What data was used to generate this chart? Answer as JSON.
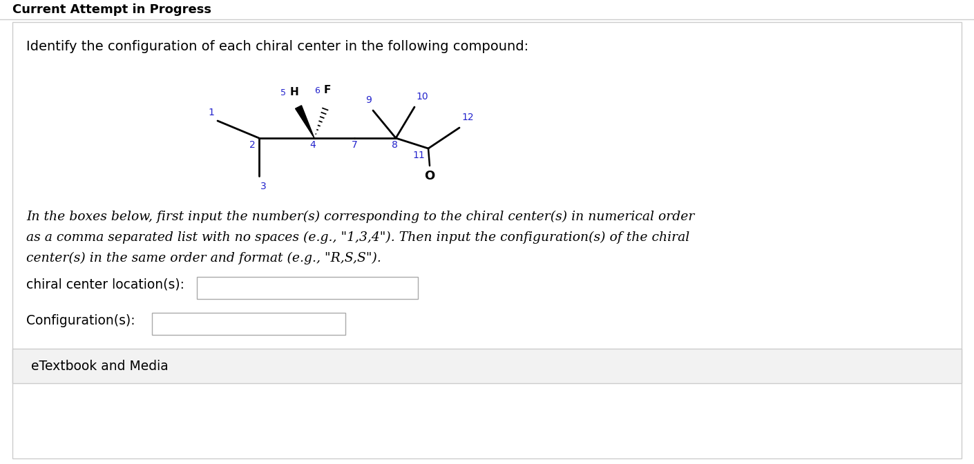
{
  "title_top": "Current Attempt in Progress",
  "question_text": "Identify the configuration of each chiral center in the following compound:",
  "instruction_text": "In the boxes below, first input the number(s) corresponding to the chiral center(s) in numerical order\nas a comma separated list with no spaces (e.g., \"1,3,4\"). Then input the configuration(s) of the chiral\ncenter(s) in the same order and format (e.g., \"R,S,S\").",
  "label1_text": "chiral center location(s):",
  "label2_text": "Configuration(s):",
  "etextbook_text": "eTextbook and Media",
  "bg_color": "#ffffff",
  "label_color": "#2222cc",
  "bond_color": "#000000",
  "text_color": "#000000"
}
